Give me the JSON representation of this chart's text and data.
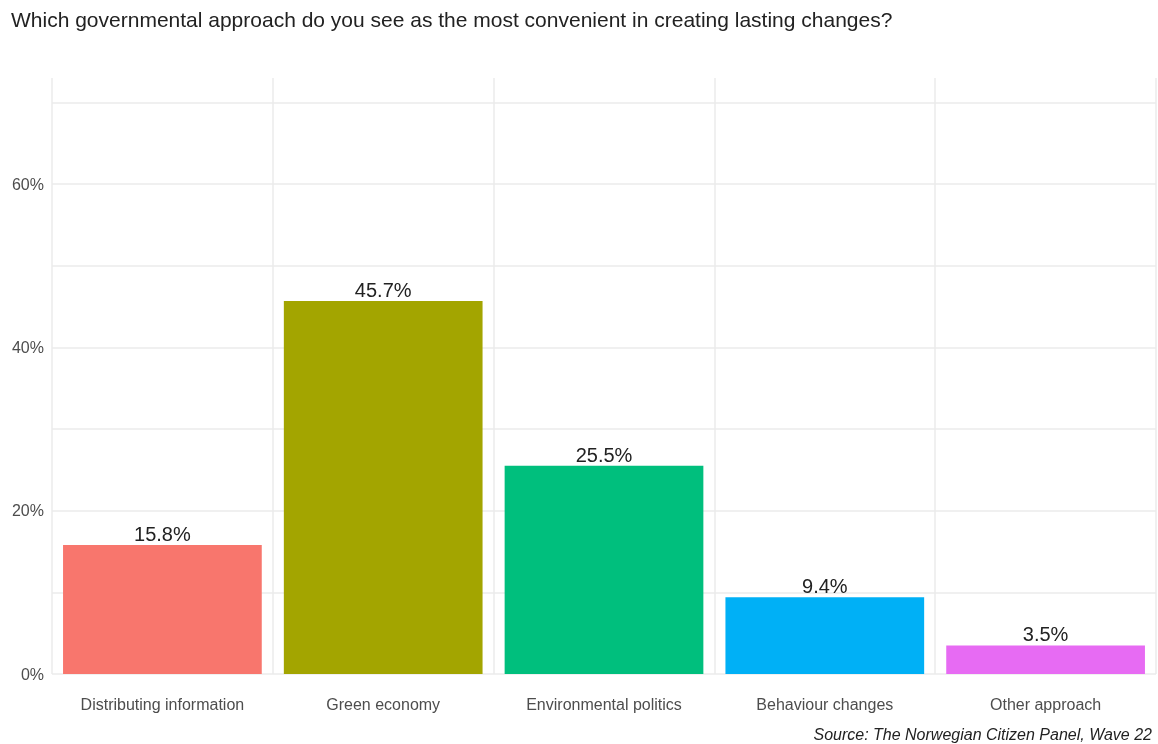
{
  "chart_data": {
    "type": "bar",
    "title": "Which governmental approach do you see as the most convenient in creating lasting changes?",
    "categories": [
      "Distributing information",
      "Green economy",
      "Environmental politics",
      "Behaviour changes",
      "Other approach"
    ],
    "values": [
      15.8,
      45.7,
      25.5,
      9.4,
      3.5
    ],
    "colors": [
      "#f8766d",
      "#a3a500",
      "#00bf7d",
      "#00b0f6",
      "#e76bf3"
    ],
    "value_labels": [
      "15.8%",
      "45.7%",
      "25.5%",
      "9.4%",
      "3.5%"
    ],
    "ylim": [
      0,
      73
    ],
    "yticks": [
      {
        "value": 0,
        "label": "0%"
      },
      {
        "value": 10,
        "label": null
      },
      {
        "value": 20,
        "label": "20%"
      },
      {
        "value": 30,
        "label": null
      },
      {
        "value": 40,
        "label": "40%"
      },
      {
        "value": 50,
        "label": null
      },
      {
        "value": 60,
        "label": "60%"
      },
      {
        "value": 70,
        "label": null
      }
    ],
    "grid": true,
    "annotations": [
      "Source: The Norwegian Citizen Panel, Wave 22"
    ]
  }
}
